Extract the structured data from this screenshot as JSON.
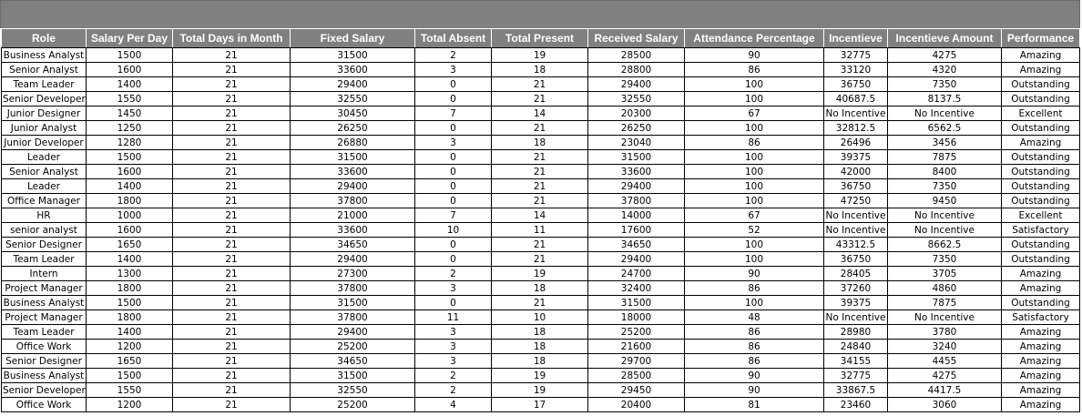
{
  "columns": [
    "Role",
    "Salary Per Day",
    "Total Days in Month",
    "Fixed Salary",
    "Total Absent",
    "Total Present",
    "Received Salary",
    "Attendance Percentage",
    "Incentieve",
    "Incentieve Amount",
    "Performance"
  ],
  "rows": [
    [
      "Business Analyst",
      "1500",
      "21",
      "31500",
      "2",
      "19",
      "28500",
      "90",
      "32775",
      "4275",
      "Amazing"
    ],
    [
      "Senior Analyst",
      "1600",
      "21",
      "33600",
      "3",
      "18",
      "28800",
      "86",
      "33120",
      "4320",
      "Amazing"
    ],
    [
      "Team Leader",
      "1400",
      "21",
      "29400",
      "0",
      "21",
      "29400",
      "100",
      "36750",
      "7350",
      "Outstanding"
    ],
    [
      "Senior Developer",
      "1550",
      "21",
      "32550",
      "0",
      "21",
      "32550",
      "100",
      "40687.5",
      "8137.5",
      "Outstanding"
    ],
    [
      "Junior Designer",
      "1450",
      "21",
      "30450",
      "7",
      "14",
      "20300",
      "67",
      "No Incentive",
      "No Incentive",
      "Excellent"
    ],
    [
      "Junior Analyst",
      "1250",
      "21",
      "26250",
      "0",
      "21",
      "26250",
      "100",
      "32812.5",
      "6562.5",
      "Outstanding"
    ],
    [
      "Junior Developer",
      "1280",
      "21",
      "26880",
      "3",
      "18",
      "23040",
      "86",
      "26496",
      "3456",
      "Amazing"
    ],
    [
      "Leader",
      "1500",
      "21",
      "31500",
      "0",
      "21",
      "31500",
      "100",
      "39375",
      "7875",
      "Outstanding"
    ],
    [
      "Senior Analyst",
      "1600",
      "21",
      "33600",
      "0",
      "21",
      "33600",
      "100",
      "42000",
      "8400",
      "Outstanding"
    ],
    [
      "Leader",
      "1400",
      "21",
      "29400",
      "0",
      "21",
      "29400",
      "100",
      "36750",
      "7350",
      "Outstanding"
    ],
    [
      "Office Manager",
      "1800",
      "21",
      "37800",
      "0",
      "21",
      "37800",
      "100",
      "47250",
      "9450",
      "Outstanding"
    ],
    [
      "HR",
      "1000",
      "21",
      "21000",
      "7",
      "14",
      "14000",
      "67",
      "No Incentive",
      "No Incentive",
      "Excellent"
    ],
    [
      "senior analyst",
      "1600",
      "21",
      "33600",
      "10",
      "11",
      "17600",
      "52",
      "No Incentive",
      "No Incentive",
      "Satisfactory"
    ],
    [
      "Senior Designer",
      "1650",
      "21",
      "34650",
      "0",
      "21",
      "34650",
      "100",
      "43312.5",
      "8662.5",
      "Outstanding"
    ],
    [
      "Team Leader",
      "1400",
      "21",
      "29400",
      "0",
      "21",
      "29400",
      "100",
      "36750",
      "7350",
      "Outstanding"
    ],
    [
      "Intern",
      "1300",
      "21",
      "27300",
      "2",
      "19",
      "24700",
      "90",
      "28405",
      "3705",
      "Amazing"
    ],
    [
      "Project Manager",
      "1800",
      "21",
      "37800",
      "3",
      "18",
      "32400",
      "86",
      "37260",
      "4860",
      "Amazing"
    ],
    [
      "Business Analyst",
      "1500",
      "21",
      "31500",
      "0",
      "21",
      "31500",
      "100",
      "39375",
      "7875",
      "Outstanding"
    ],
    [
      "Project Manager",
      "1800",
      "21",
      "37800",
      "11",
      "10",
      "18000",
      "48",
      "No Incentive",
      "No Incentive",
      "Satisfactory"
    ],
    [
      "Team Leader",
      "1400",
      "21",
      "29400",
      "3",
      "18",
      "25200",
      "86",
      "28980",
      "3780",
      "Amazing"
    ],
    [
      "Office Work",
      "1200",
      "21",
      "25200",
      "3",
      "18",
      "21600",
      "86",
      "24840",
      "3240",
      "Amazing"
    ],
    [
      "Senior Designer",
      "1650",
      "21",
      "34650",
      "3",
      "18",
      "29700",
      "86",
      "34155",
      "4455",
      "Amazing"
    ],
    [
      "Business Analyst",
      "1500",
      "21",
      "31500",
      "2",
      "19",
      "28500",
      "90",
      "32775",
      "4275",
      "Amazing"
    ],
    [
      "Senior Developer",
      "1550",
      "21",
      "32550",
      "2",
      "19",
      "29450",
      "90",
      "33867.5",
      "4417.5",
      "Amazing"
    ],
    [
      "Office Work",
      "1200",
      "21",
      "25200",
      "4",
      "17",
      "20400",
      "81",
      "23460",
      "3060",
      "Amazing"
    ]
  ],
  "colors": {
    "header_bg": "#808080",
    "header_text": "#ffffff",
    "grid": "#000000"
  }
}
